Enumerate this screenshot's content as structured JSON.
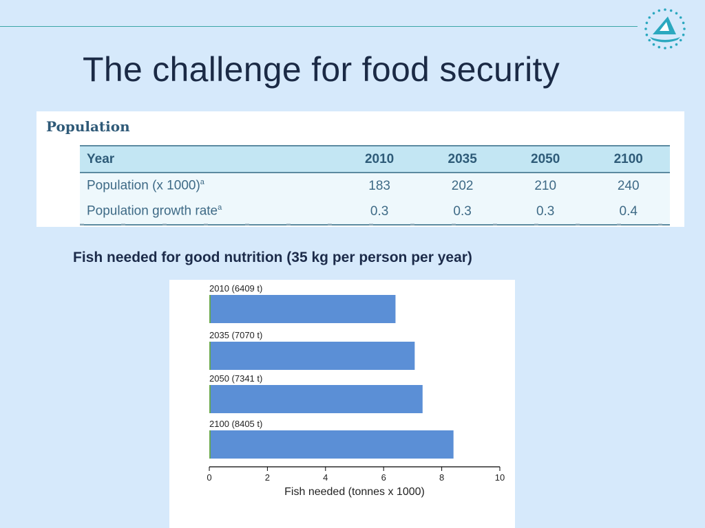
{
  "slide": {
    "title": "The challenge for food security",
    "subheading": "Fish needed for good nutrition (35 kg per person per year)"
  },
  "logo": {
    "icon": "sailboat-dotted-circle-logo",
    "color": "#2ba8bf"
  },
  "population_table": {
    "heading": "Population",
    "columns": [
      "Year",
      "2010",
      "2035",
      "2050",
      "2100"
    ],
    "rows": [
      {
        "label": "Population (x 1000)",
        "sup": "a",
        "values": [
          "183",
          "202",
          "210",
          "240"
        ]
      },
      {
        "label": "Population growth rate",
        "sup": "a",
        "values": [
          "0.3",
          "0.3",
          "0.3",
          "0.4"
        ]
      }
    ]
  },
  "chart_data": {
    "type": "bar",
    "orientation": "horizontal",
    "categories": [
      "2010 (6409 t)",
      "2035 (7070 t)",
      "2050 (7341 t)",
      "2100 (8405 t)"
    ],
    "values": [
      6.409,
      7.07,
      7.341,
      8.405
    ],
    "xlabel": "Fish needed (tonnes x 1000)",
    "xlim": [
      0,
      10
    ],
    "xticks": [
      0,
      2,
      4,
      6,
      8,
      10
    ],
    "bar_color": "#5b8fd6",
    "grid": false
  }
}
